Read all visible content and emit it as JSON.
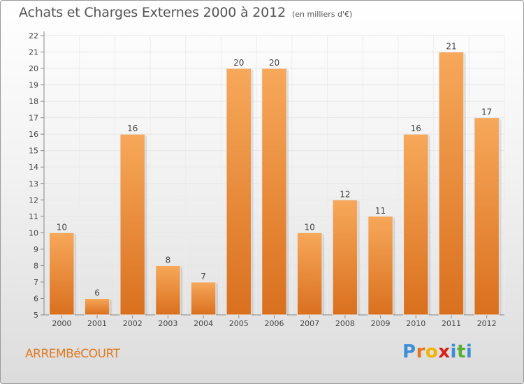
{
  "header": {
    "title": "Achats et Charges Externes 2000 à 2012",
    "subtitle": "(en milliers d'€)"
  },
  "footer": {
    "commune": "ARREMBéCOURT",
    "logo_letters": [
      "P",
      "r",
      "o",
      "x",
      "i",
      "t",
      "i"
    ],
    "logo_colors": [
      "#3a8fd6",
      "#e8731c",
      "#f2b400",
      "#d8201a",
      "#3a8fd6",
      "#57b030",
      "#3a8fd6"
    ]
  },
  "chart_data": {
    "type": "bar",
    "categories": [
      "2000",
      "2001",
      "2002",
      "2003",
      "2004",
      "2005",
      "2006",
      "2007",
      "2008",
      "2009",
      "2010",
      "2011",
      "2012"
    ],
    "values": [
      10,
      6,
      16,
      8,
      7,
      20,
      20,
      10,
      12,
      11,
      16,
      21,
      17
    ],
    "data_labels": [
      "10",
      "6",
      "16",
      "8",
      "7",
      "20",
      "20",
      "10",
      "12",
      "11",
      "16",
      "21",
      "17"
    ],
    "yticks": [
      5,
      6,
      7,
      8,
      9,
      10,
      11,
      12,
      13,
      14,
      15,
      16,
      17,
      18,
      19,
      20,
      21,
      22
    ],
    "ylim": [
      5,
      22
    ],
    "grid": true,
    "bar_color_top": "#f7a85a",
    "bar_color_bottom": "#d9701e"
  }
}
